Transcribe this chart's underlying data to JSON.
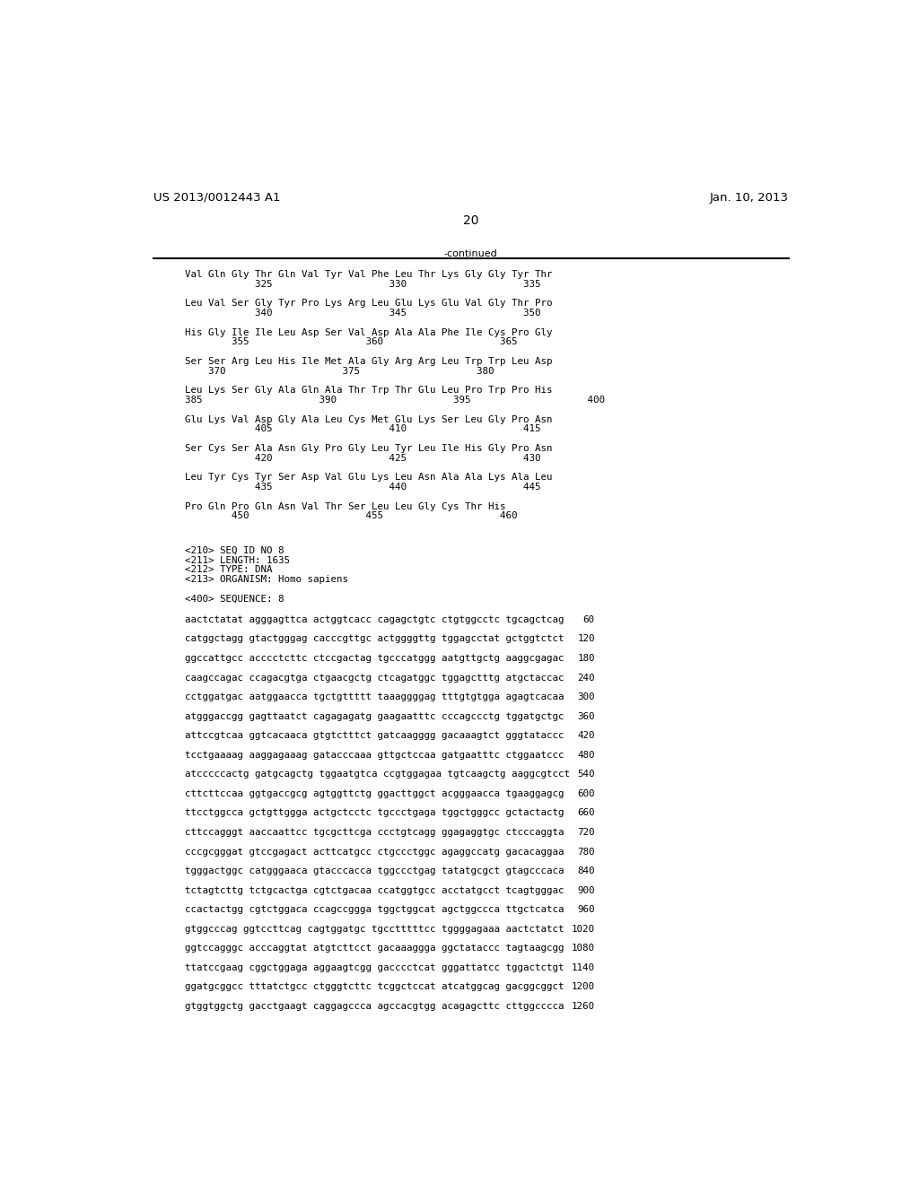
{
  "header_left": "US 2013/0012443 A1",
  "header_right": "Jan. 10, 2013",
  "page_number": "20",
  "continued_label": "-continued",
  "background_color": "#ffffff",
  "text_color": "#000000",
  "amino_acid_lines": [
    {
      "seq": "Val Gln Gly Thr Gln Val Tyr Val Phe Leu Thr Lys Gly Gly Tyr Thr",
      "nums": "            325                    330                    335"
    },
    {
      "seq": "Leu Val Ser Gly Tyr Pro Lys Arg Leu Glu Lys Glu Val Gly Thr Pro",
      "nums": "            340                    345                    350"
    },
    {
      "seq": "His Gly Ile Ile Leu Asp Ser Val Asp Ala Ala Phe Ile Cys Pro Gly",
      "nums": "        355                    360                    365"
    },
    {
      "seq": "Ser Ser Arg Leu His Ile Met Ala Gly Arg Arg Leu Trp Trp Leu Asp",
      "nums": "    370                    375                    380"
    },
    {
      "seq": "Leu Lys Ser Gly Ala Gln Ala Thr Trp Thr Glu Leu Pro Trp Pro His",
      "nums": "385                    390                    395                    400"
    },
    {
      "seq": "Glu Lys Val Asp Gly Ala Leu Cys Met Glu Lys Ser Leu Gly Pro Asn",
      "nums": "            405                    410                    415"
    },
    {
      "seq": "Ser Cys Ser Ala Asn Gly Pro Gly Leu Tyr Leu Ile His Gly Pro Asn",
      "nums": "            420                    425                    430"
    },
    {
      "seq": "Leu Tyr Cys Tyr Ser Asp Val Glu Lys Leu Asn Ala Ala Lys Ala Leu",
      "nums": "            435                    440                    445"
    },
    {
      "seq": "Pro Gln Pro Gln Asn Val Thr Ser Leu Leu Gly Cys Thr His",
      "nums": "        450                    455                    460"
    }
  ],
  "seq_info_lines": [
    "<210> SEQ ID NO 8",
    "<211> LENGTH: 1635",
    "<212> TYPE: DNA",
    "<213> ORGANISM: Homo sapiens",
    "",
    "<400> SEQUENCE: 8"
  ],
  "dna_lines": [
    {
      "seq": "aactctatat agggagttca actggtcacc cagagctgtc ctgtggcctc tgcagctcag",
      "num": "60"
    },
    {
      "seq": "catggctagg gtactgggag cacccgttgc actggggttg tggagcctat gctggtctct",
      "num": "120"
    },
    {
      "seq": "ggccattgcc acccctcttc ctccgactag tgcccatggg aatgttgctg aaggcgagac",
      "num": "180"
    },
    {
      "seq": "caagccagac ccagacgtga ctgaacgctg ctcagatggc tggagctttg atgctaccac",
      "num": "240"
    },
    {
      "seq": "cctggatgac aatggaacca tgctgttttt taaaggggag tttgtgtgga agagtcacaa",
      "num": "300"
    },
    {
      "seq": "atgggaccgg gagttaatct cagagagatg gaagaatttc cccagccctg tggatgctgc",
      "num": "360"
    },
    {
      "seq": "attccgtcaa ggtcacaaca gtgtctttct gatcaagggg gacaaagtct gggtataccc",
      "num": "420"
    },
    {
      "seq": "tcctgaaaag aaggagaaag gatacccaaa gttgctccaa gatgaatttc ctggaatccc",
      "num": "480"
    },
    {
      "seq": "atcccccactg gatgcagctg tggaatgtca ccgtggagaa tgtcaagctg aaggcgtcct",
      "num": "540"
    },
    {
      "seq": "cttcttccaa ggtgaccgcg agtggttctg ggacttggct acgggaacca tgaaggagcg",
      "num": "600"
    },
    {
      "seq": "ttcctggcca gctgttggga actgctcctc tgccctgaga tggctgggcc gctactactg",
      "num": "660"
    },
    {
      "seq": "cttccagggt aaccaattcc tgcgcttcga ccctgtcagg ggagaggtgc ctcccaggta",
      "num": "720"
    },
    {
      "seq": "cccgcgggat gtccgagact acttcatgcc ctgccctggc agaggccatg gacacaggaa",
      "num": "780"
    },
    {
      "seq": "tgggactggc catgggaaca gtacccacca tggccctgag tatatgcgct gtagcccaca",
      "num": "840"
    },
    {
      "seq": "tctagtcttg tctgcactga cgtctgacaa ccatggtgcc acctatgcct tcagtgggac",
      "num": "900"
    },
    {
      "seq": "ccactactgg cgtctggaca ccagccggga tggctggcat agctggccca ttgctcatca",
      "num": "960"
    },
    {
      "seq": "gtggcccag ggtccttcag cagtggatgc tgcctttttcc tggggagaaa aactctatct",
      "num": "1020"
    },
    {
      "seq": "ggtccagggc acccaggtat atgtcttcct gacaaaggga ggctataccc tagtaagcgg",
      "num": "1080"
    },
    {
      "seq": "ttatccgaag cggctggaga aggaagtcgg gacccctcat gggattatcc tggactctgt",
      "num": "1140"
    },
    {
      "seq": "ggatgcggcc tttatctgcc ctgggtcttc tcggctccat atcatggcag gacggcggct",
      "num": "1200"
    },
    {
      "seq": "gtggtggctg gacctgaagt caggagccca agccacgtgg acagagcttc cttggcccca",
      "num": "1260"
    }
  ]
}
